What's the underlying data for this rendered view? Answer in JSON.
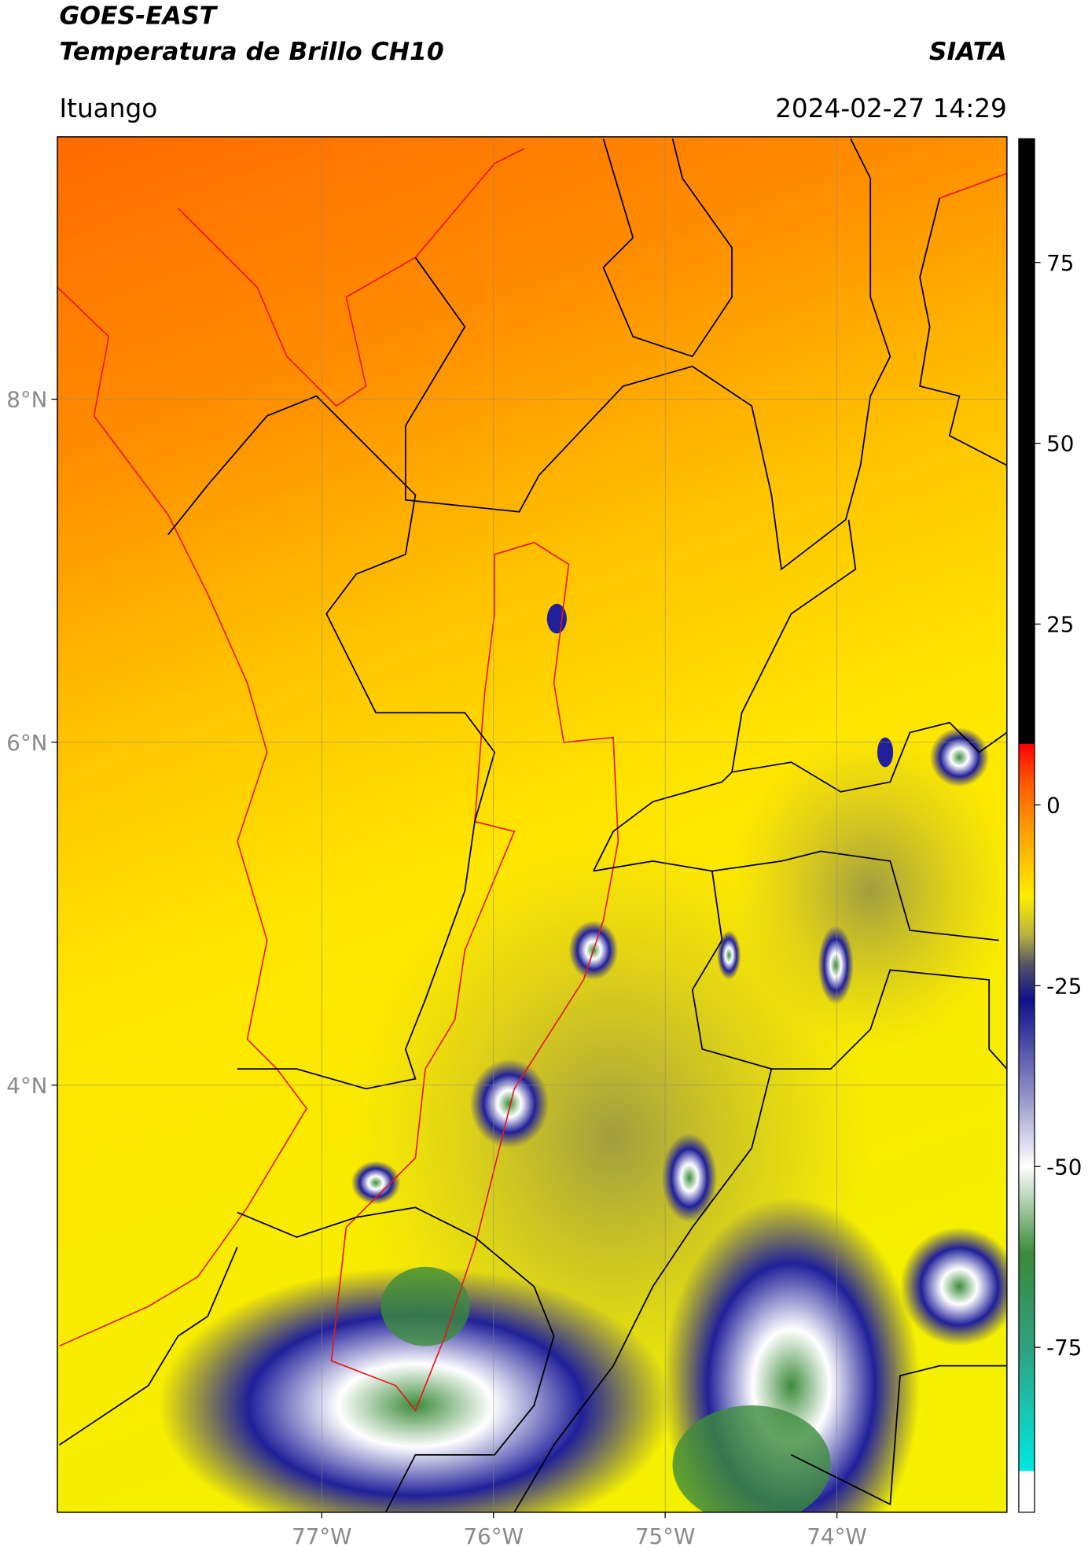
{
  "header": {
    "title_line1": "GOES-EAST",
    "title_line2": "Temperatura de Brillo CH10",
    "brand": "SIATA",
    "location": "Ituango",
    "datetime": "2024-02-27 14:29"
  },
  "map": {
    "xlim": [
      -78.54,
      -73.01
    ],
    "ylim": [
      1.51,
      9.53
    ],
    "lat_ticks": [
      {
        "value": 8,
        "label": "8°N"
      },
      {
        "value": 6,
        "label": "6°N"
      },
      {
        "value": 4,
        "label": "4°N"
      }
    ],
    "lon_ticks": [
      {
        "value": -77,
        "label": "77°W"
      },
      {
        "value": -76,
        "label": "76°W"
      },
      {
        "value": -75,
        "label": "75°W"
      },
      {
        "value": -74,
        "label": "74°W"
      }
    ],
    "grid": true
  },
  "colorbar": {
    "lim": [
      -97.8,
      92.1
    ],
    "ticks": [
      75,
      50,
      25,
      0,
      -25,
      -50,
      -75
    ],
    "stops": [
      {
        "value": 92.1,
        "color": "#000000"
      },
      {
        "value": 8.5,
        "color": "#000000"
      },
      {
        "value": 8.4,
        "color": "#ff0000"
      },
      {
        "value": 3,
        "color": "#ff5a00"
      },
      {
        "value": -3,
        "color": "#ff9a00"
      },
      {
        "value": -12.7,
        "color": "#ffee00"
      },
      {
        "value": -18,
        "color": "#b8b040"
      },
      {
        "value": -22,
        "color": "#555566"
      },
      {
        "value": -27,
        "color": "#10108a"
      },
      {
        "value": -40,
        "color": "#9090c8"
      },
      {
        "value": -50,
        "color": "#ffffff"
      },
      {
        "value": -62,
        "color": "#3a8a3a"
      },
      {
        "value": -75,
        "color": "#30a080"
      },
      {
        "value": -92,
        "color": "#00e8e0"
      },
      {
        "value": -92.2,
        "color": "#ffffff"
      },
      {
        "value": -97.8,
        "color": "#ffffff"
      }
    ]
  }
}
